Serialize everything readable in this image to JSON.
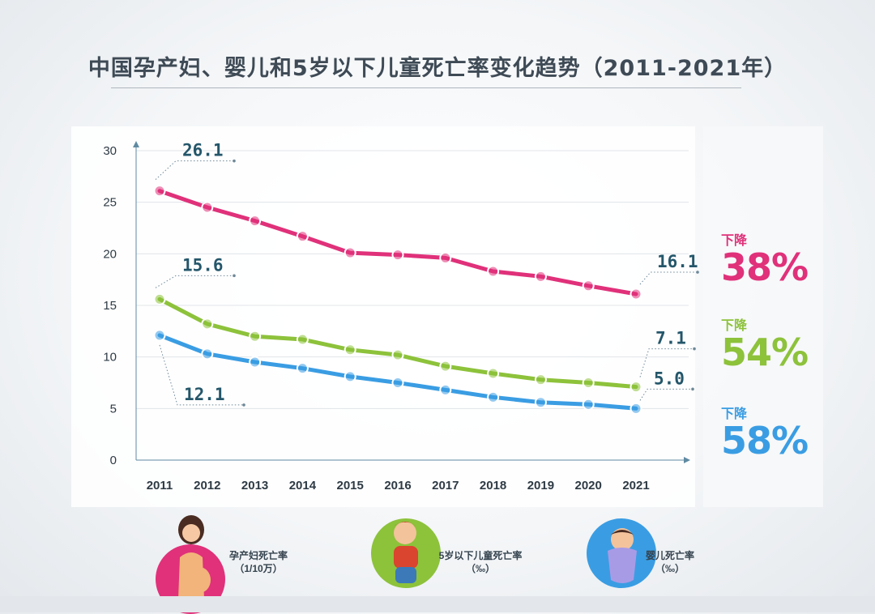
{
  "title": "中国孕产妇、婴儿和5岁以下儿童死亡率变化趋势（2011-2021年）",
  "colors": {
    "maternal": "#e0317a",
    "under5": "#8dc23b",
    "infant": "#3a9de3"
  },
  "chart_data": {
    "type": "line",
    "title": "中国孕产妇、婴儿和5岁以下儿童死亡率变化趋势（2011-2021年）",
    "x": [
      "2011",
      "2012",
      "2013",
      "2014",
      "2015",
      "2016",
      "2017",
      "2018",
      "2019",
      "2020",
      "2021"
    ],
    "yticks": [
      "0",
      "5",
      "10",
      "15",
      "20",
      "25",
      "30"
    ],
    "ylim": [
      0,
      30
    ],
    "grid": true,
    "series": [
      {
        "name": "孕产妇死亡率（1/10万）",
        "key": "maternal",
        "values": [
          26.1,
          24.5,
          23.2,
          21.7,
          20.1,
          19.9,
          19.6,
          18.3,
          17.8,
          16.9,
          16.1
        ]
      },
      {
        "name": "5岁以下儿童死亡率（‰）",
        "key": "under5",
        "values": [
          15.6,
          13.2,
          12.0,
          11.7,
          10.7,
          10.2,
          9.1,
          8.4,
          7.8,
          7.5,
          7.1
        ]
      },
      {
        "name": "婴儿死亡率（‰）",
        "key": "infant",
        "values": [
          12.1,
          10.3,
          9.5,
          8.9,
          8.1,
          7.5,
          6.8,
          6.1,
          5.6,
          5.4,
          5.0
        ]
      }
    ],
    "data_labels": [
      {
        "text": "26.1",
        "series": 0,
        "index": 0
      },
      {
        "text": "16.1",
        "series": 0,
        "index": 10
      },
      {
        "text": "15.6",
        "series": 1,
        "index": 0
      },
      {
        "text": "7.1",
        "series": 1,
        "index": 10
      },
      {
        "text": "12.1",
        "series": 2,
        "index": 0
      },
      {
        "text": "5.0",
        "series": 2,
        "index": 10
      }
    ]
  },
  "declines": [
    {
      "label": "下降",
      "pct": "38%",
      "key": "maternal"
    },
    {
      "label": "下降",
      "pct": "54%",
      "key": "under5"
    },
    {
      "label": "下降",
      "pct": "58%",
      "key": "infant"
    }
  ],
  "legend": [
    {
      "line1": "孕产妇死亡率",
      "line2": "（1/10万）",
      "icon": "pregnant-woman-icon",
      "key": "maternal"
    },
    {
      "line1": "5岁以下儿童死亡率",
      "line2": "（‰）",
      "icon": "child-icon",
      "key": "under5"
    },
    {
      "line1": "婴儿死亡率",
      "line2": "（‰）",
      "icon": "infant-icon",
      "key": "infant"
    }
  ]
}
